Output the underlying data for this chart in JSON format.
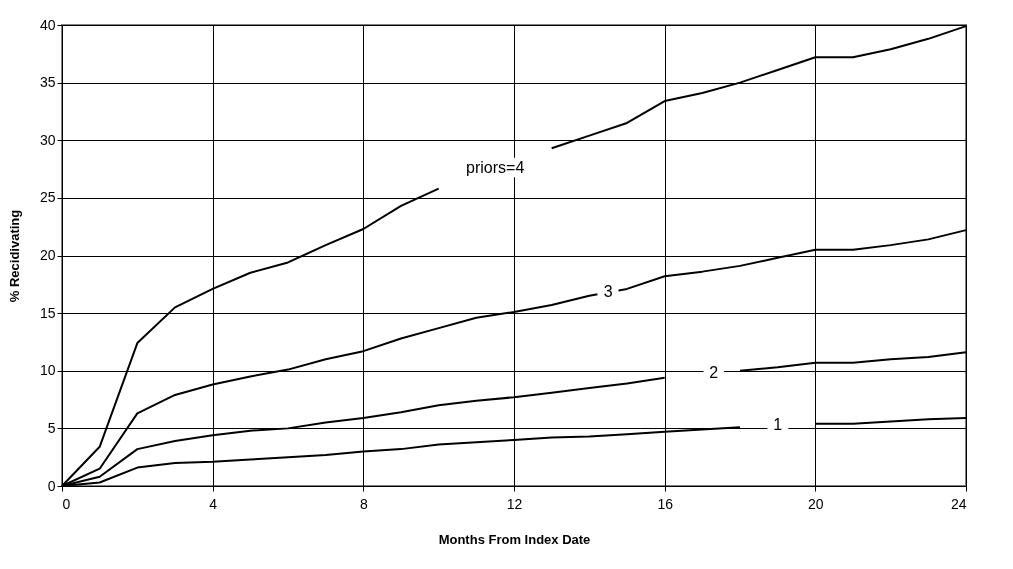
{
  "chart_data": {
    "type": "line",
    "xlabel": "Months From Index Date",
    "ylabel": "% Recidivating",
    "x": [
      0,
      1,
      2,
      3,
      4,
      5,
      6,
      7,
      8,
      9,
      10,
      11,
      12,
      13,
      14,
      15,
      16,
      17,
      18,
      19,
      20,
      21,
      22,
      23,
      24
    ],
    "series": [
      {
        "name": "priors=4",
        "color": "#000000",
        "values": [
          0,
          3.4,
          12.4,
          15.5,
          17.1,
          18.5,
          19.4,
          20.9,
          22.3,
          24.3,
          25.8,
          null,
          null,
          29.3,
          30.4,
          31.5,
          33.4,
          34.1,
          35.0,
          36.1,
          37.2,
          37.2,
          37.9,
          38.8,
          39.9
        ]
      },
      {
        "name": "3",
        "color": "#000000",
        "values": [
          0,
          1.5,
          6.3,
          7.9,
          8.8,
          9.5,
          10.1,
          11.0,
          11.7,
          12.8,
          13.7,
          14.6,
          15.1,
          15.7,
          16.5,
          17.1,
          18.2,
          18.6,
          19.1,
          19.8,
          20.5,
          20.5,
          20.9,
          21.4,
          22.2
        ]
      },
      {
        "name": "2",
        "color": "#000000",
        "values": [
          0,
          0.8,
          3.2,
          3.9,
          4.4,
          4.8,
          5.0,
          5.5,
          5.9,
          6.4,
          7.0,
          7.4,
          7.7,
          8.1,
          8.5,
          8.9,
          9.4,
          null,
          10.0,
          10.3,
          10.7,
          10.7,
          11.0,
          11.2,
          11.6
        ]
      },
      {
        "name": "1",
        "color": "#000000",
        "values": [
          0,
          0.3,
          1.6,
          2.0,
          2.1,
          2.3,
          2.5,
          2.7,
          3.0,
          3.2,
          3.6,
          3.8,
          4.0,
          4.2,
          4.3,
          4.5,
          4.7,
          4.9,
          5.1,
          null,
          5.4,
          5.4,
          5.6,
          5.8,
          5.9
        ]
      }
    ],
    "xlim": [
      0,
      24
    ],
    "xticks": [
      0,
      4,
      8,
      12,
      16,
      20,
      24
    ],
    "ylim": [
      0,
      40
    ],
    "yticks": [
      0,
      5,
      10,
      15,
      20,
      25,
      30,
      35,
      40
    ],
    "grid": true,
    "legend": false,
    "marker": "none",
    "line_style": "solid"
  }
}
